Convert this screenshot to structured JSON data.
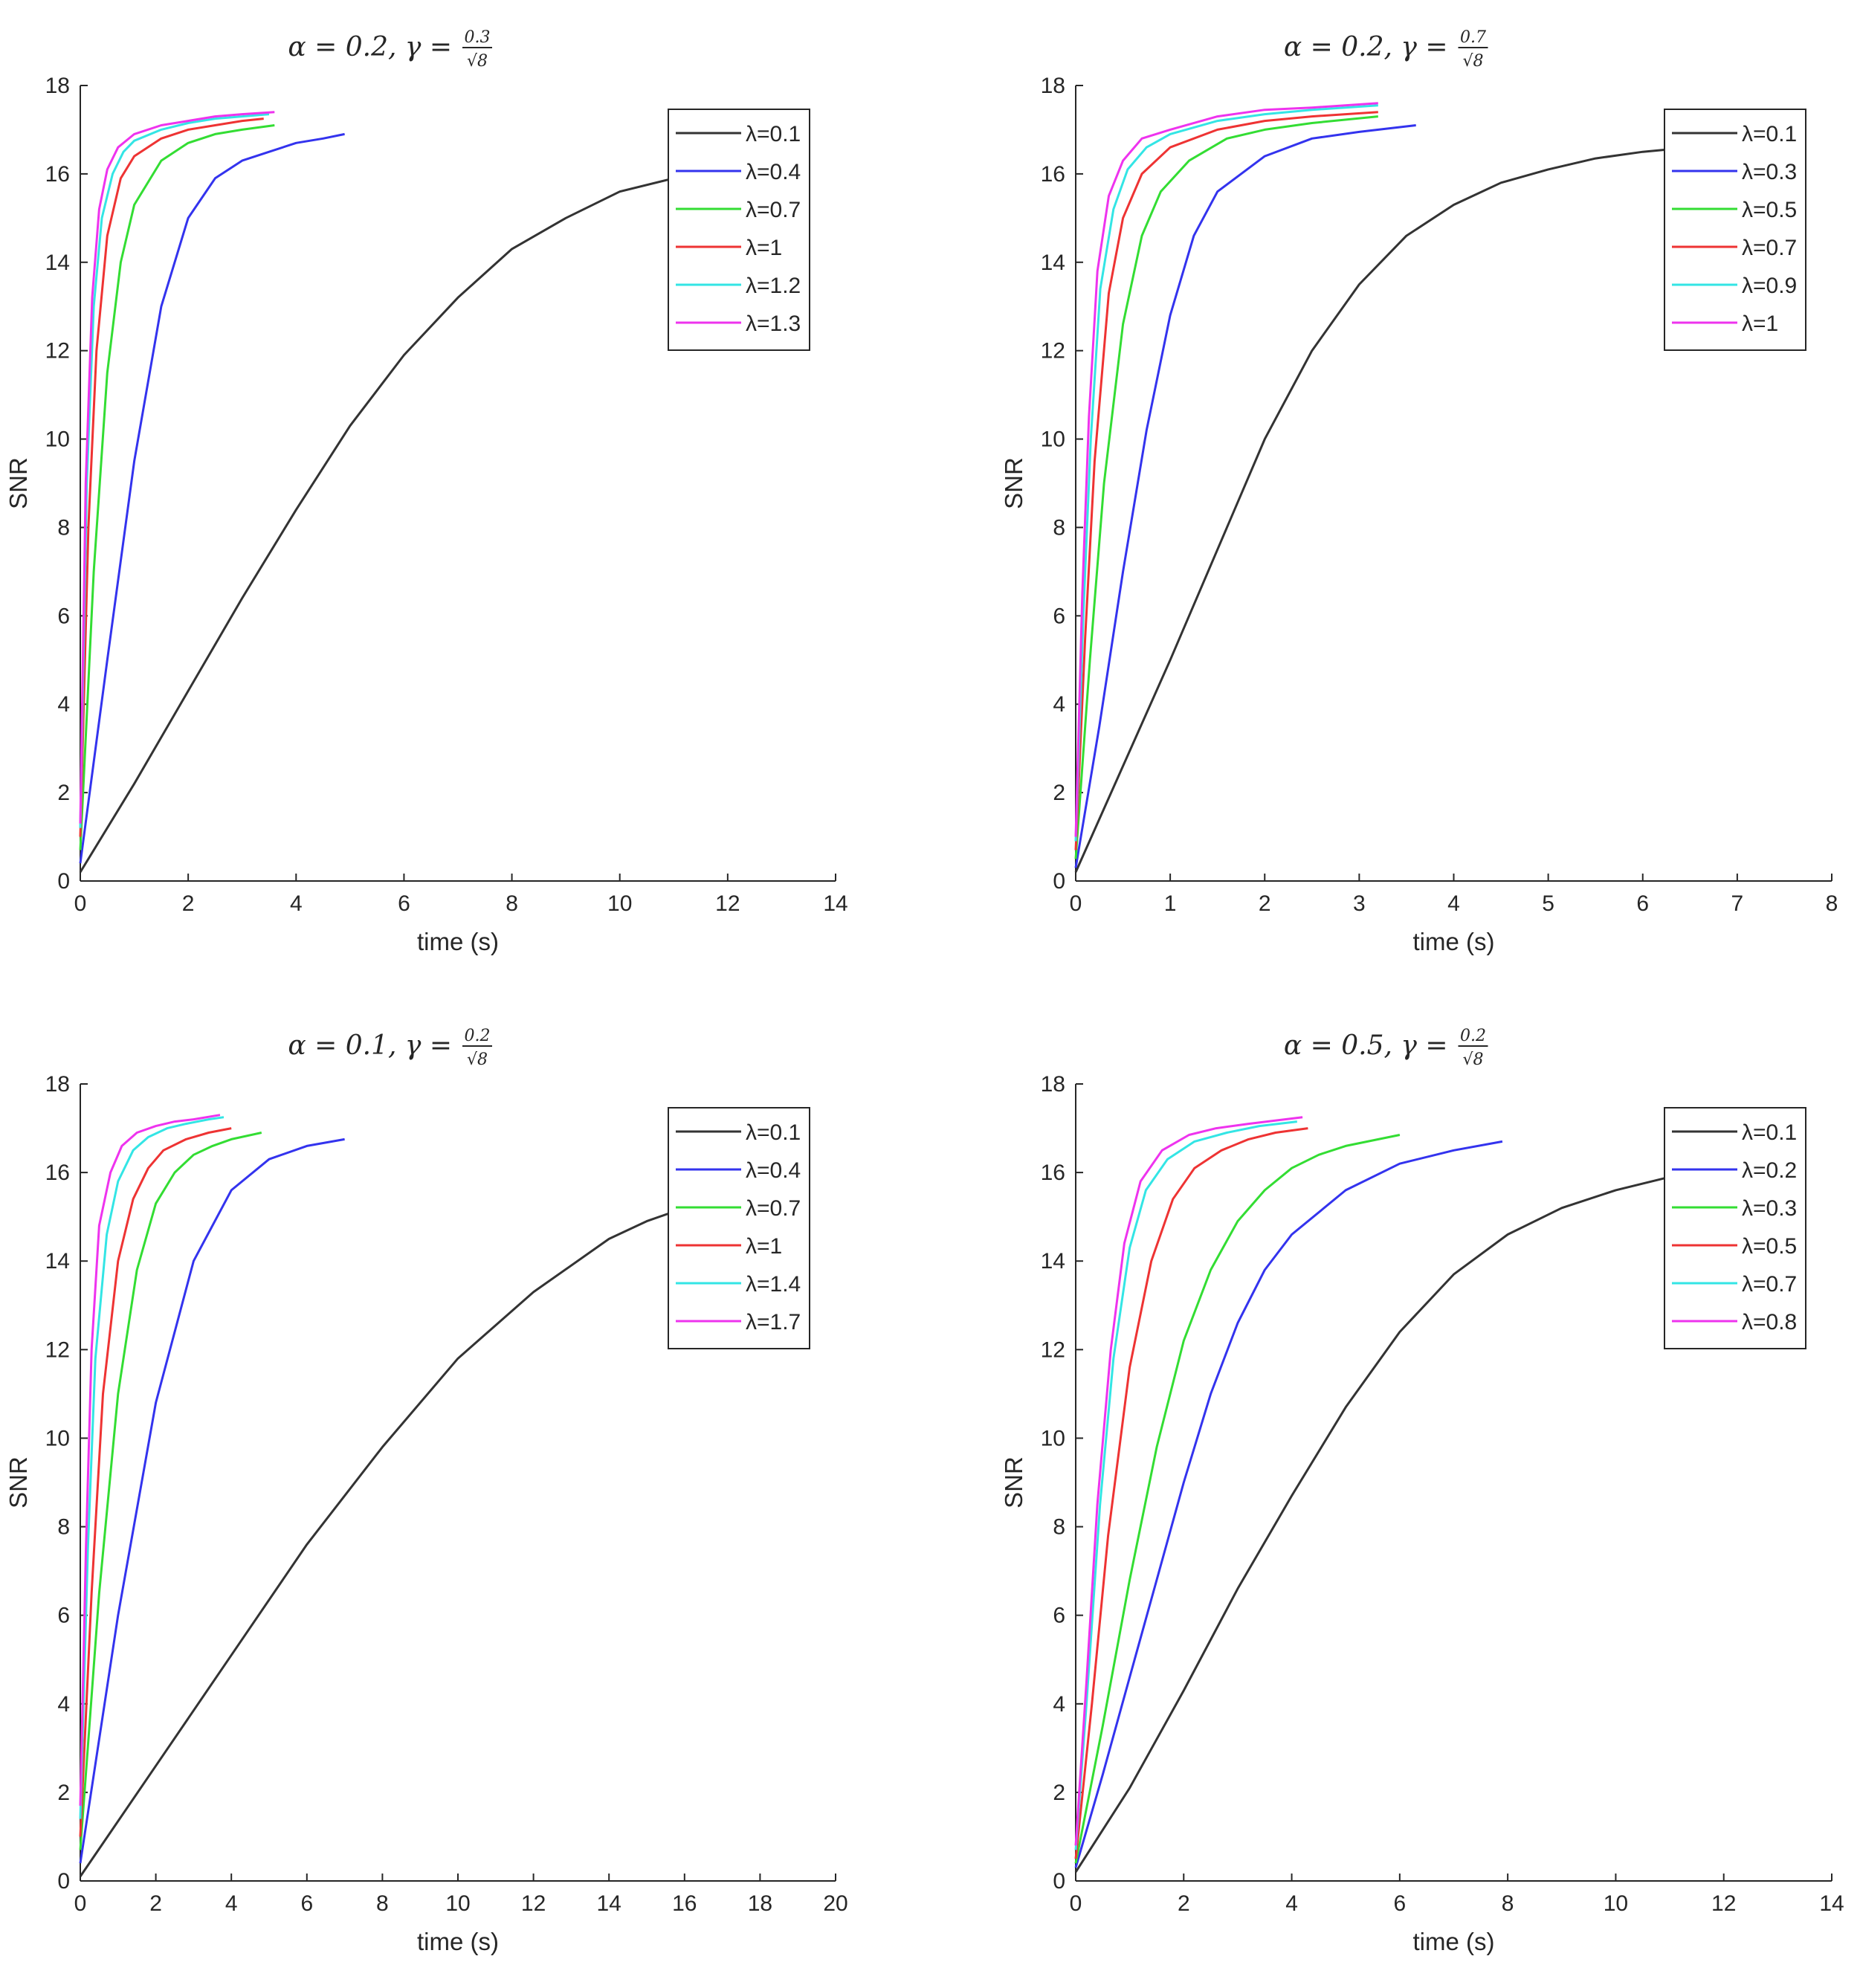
{
  "chart_data": [
    {
      "type": "line",
      "title": "α = 0.2, γ = 0.3/√8",
      "title_parts": {
        "alpha": "0.2",
        "gamma_num": "0.3",
        "gamma_den": "8"
      },
      "xlabel": "time (s)",
      "ylabel": "SNR",
      "xlim": [
        0,
        14
      ],
      "ylim": [
        0,
        18
      ],
      "xticks": [
        0,
        2,
        4,
        6,
        8,
        10,
        12,
        14
      ],
      "yticks": [
        0,
        2,
        4,
        6,
        8,
        10,
        12,
        14,
        16,
        18
      ],
      "legend_position": "top-right",
      "series": [
        {
          "name": "λ=0.1",
          "color": "#333333",
          "x": [
            0,
            1,
            2,
            3,
            4,
            5,
            6,
            7,
            8,
            9,
            10,
            11,
            12
          ],
          "y": [
            0.2,
            2.2,
            4.3,
            6.4,
            8.4,
            10.3,
            11.9,
            13.2,
            14.3,
            15.0,
            15.6,
            15.9,
            16.1
          ]
        },
        {
          "name": "λ=0.4",
          "color": "#3333ee",
          "x": [
            0,
            0.5,
            1,
            1.5,
            2,
            2.5,
            3,
            3.5,
            4,
            4.5,
            4.9
          ],
          "y": [
            0.4,
            5.0,
            9.5,
            13.0,
            15.0,
            15.9,
            16.3,
            16.5,
            16.7,
            16.8,
            16.9
          ]
        },
        {
          "name": "λ=0.7",
          "color": "#33dd33",
          "x": [
            0,
            0.25,
            0.5,
            0.75,
            1,
            1.5,
            2,
            2.5,
            3,
            3.6
          ],
          "y": [
            0.7,
            7.0,
            11.5,
            14.0,
            15.3,
            16.3,
            16.7,
            16.9,
            17.0,
            17.1
          ]
        },
        {
          "name": "λ=1",
          "color": "#ee3333",
          "x": [
            0,
            0.15,
            0.3,
            0.5,
            0.75,
            1,
            1.5,
            2,
            2.5,
            3,
            3.4
          ],
          "y": [
            1.0,
            8.0,
            12.0,
            14.6,
            15.9,
            16.4,
            16.8,
            17.0,
            17.1,
            17.2,
            17.25
          ]
        },
        {
          "name": "λ=1.2",
          "color": "#33e5e5",
          "x": [
            0,
            0.12,
            0.25,
            0.4,
            0.6,
            0.8,
            1,
            1.5,
            2,
            2.5,
            3,
            3.5
          ],
          "y": [
            1.2,
            9.0,
            13.0,
            15.0,
            16.0,
            16.5,
            16.75,
            17.0,
            17.15,
            17.25,
            17.3,
            17.35
          ]
        },
        {
          "name": "λ=1.3",
          "color": "#ee33ee",
          "x": [
            0,
            0.1,
            0.22,
            0.35,
            0.5,
            0.7,
            1,
            1.5,
            2,
            2.5,
            3,
            3.6
          ],
          "y": [
            1.3,
            9.0,
            13.2,
            15.2,
            16.1,
            16.6,
            16.9,
            17.1,
            17.2,
            17.3,
            17.35,
            17.4
          ]
        }
      ]
    },
    {
      "type": "line",
      "title": "α = 0.2, γ = 0.7/√8",
      "title_parts": {
        "alpha": "0.2",
        "gamma_num": "0.7",
        "gamma_den": "8"
      },
      "xlabel": "time (s)",
      "ylabel": "SNR",
      "xlim": [
        0,
        8
      ],
      "ylim": [
        0,
        18
      ],
      "xticks": [
        0,
        1,
        2,
        3,
        4,
        5,
        6,
        7,
        8
      ],
      "yticks": [
        0,
        2,
        4,
        6,
        8,
        10,
        12,
        14,
        16,
        18
      ],
      "legend_position": "top-right",
      "series": [
        {
          "name": "λ=0.1",
          "color": "#333333",
          "x": [
            0,
            0.5,
            1,
            1.5,
            2,
            2.5,
            3,
            3.5,
            4,
            4.5,
            5,
            5.5,
            6,
            6.5,
            6.8
          ],
          "y": [
            0.2,
            2.6,
            5.0,
            7.5,
            10.0,
            12.0,
            13.5,
            14.6,
            15.3,
            15.8,
            16.1,
            16.35,
            16.5,
            16.6,
            16.65
          ]
        },
        {
          "name": "λ=0.3",
          "color": "#3333ee",
          "x": [
            0,
            0.25,
            0.5,
            0.75,
            1,
            1.25,
            1.5,
            2,
            2.5,
            3,
            3.6
          ],
          "y": [
            0.3,
            3.5,
            7.0,
            10.2,
            12.8,
            14.6,
            15.6,
            16.4,
            16.8,
            16.95,
            17.1
          ]
        },
        {
          "name": "λ=0.5",
          "color": "#33dd33",
          "x": [
            0,
            0.15,
            0.3,
            0.5,
            0.7,
            0.9,
            1.2,
            1.6,
            2,
            2.5,
            3.2
          ],
          "y": [
            0.5,
            5.0,
            9.0,
            12.6,
            14.6,
            15.6,
            16.3,
            16.8,
            17.0,
            17.15,
            17.3
          ]
        },
        {
          "name": "λ=0.7",
          "color": "#ee3333",
          "x": [
            0,
            0.1,
            0.2,
            0.35,
            0.5,
            0.7,
            1,
            1.5,
            2,
            2.5,
            3.2
          ],
          "y": [
            0.7,
            5.5,
            9.5,
            13.3,
            15.0,
            16.0,
            16.6,
            17.0,
            17.2,
            17.3,
            17.4
          ]
        },
        {
          "name": "λ=0.9",
          "color": "#33e5e5",
          "x": [
            0,
            0.08,
            0.16,
            0.26,
            0.4,
            0.55,
            0.75,
            1,
            1.5,
            2,
            2.5,
            3.2
          ],
          "y": [
            0.9,
            6.0,
            10.0,
            13.4,
            15.2,
            16.1,
            16.6,
            16.9,
            17.2,
            17.35,
            17.45,
            17.55
          ]
        },
        {
          "name": "λ=1",
          "color": "#ee33ee",
          "x": [
            0,
            0.07,
            0.14,
            0.23,
            0.35,
            0.5,
            0.7,
            1,
            1.5,
            2,
            2.5,
            3.2
          ],
          "y": [
            1.0,
            6.5,
            10.5,
            13.8,
            15.5,
            16.3,
            16.8,
            17.0,
            17.3,
            17.45,
            17.5,
            17.6
          ]
        }
      ]
    },
    {
      "type": "line",
      "title": "α = 0.1, γ = 0.2/√8",
      "title_parts": {
        "alpha": "0.1",
        "gamma_num": "0.2",
        "gamma_den": "8"
      },
      "xlabel": "time (s)",
      "ylabel": "SNR",
      "xlim": [
        0,
        20
      ],
      "ylim": [
        0,
        18
      ],
      "xticks": [
        0,
        2,
        4,
        6,
        8,
        10,
        12,
        14,
        16,
        18,
        20
      ],
      "yticks": [
        0,
        2,
        4,
        6,
        8,
        10,
        12,
        14,
        16,
        18
      ],
      "legend_position": "top-right",
      "series": [
        {
          "name": "λ=0.1",
          "color": "#333333",
          "x": [
            0,
            2,
            4,
            6,
            8,
            10,
            12,
            14,
            15,
            16,
            16.5
          ],
          "y": [
            0.1,
            2.6,
            5.1,
            7.6,
            9.8,
            11.8,
            13.3,
            14.5,
            14.9,
            15.2,
            15.35
          ]
        },
        {
          "name": "λ=0.4",
          "color": "#3333ee",
          "x": [
            0,
            1,
            2,
            3,
            4,
            5,
            6,
            7
          ],
          "y": [
            0.4,
            6.0,
            10.8,
            14.0,
            15.6,
            16.3,
            16.6,
            16.75
          ]
        },
        {
          "name": "λ=0.7",
          "color": "#33dd33",
          "x": [
            0,
            0.5,
            1,
            1.5,
            2,
            2.5,
            3,
            3.5,
            4,
            4.8
          ],
          "y": [
            0.7,
            6.5,
            11.0,
            13.8,
            15.3,
            16.0,
            16.4,
            16.6,
            16.75,
            16.9
          ]
        },
        {
          "name": "λ=1",
          "color": "#ee3333",
          "x": [
            0,
            0.3,
            0.6,
            1,
            1.4,
            1.8,
            2.2,
            2.8,
            3.4,
            4
          ],
          "y": [
            1.0,
            6.5,
            11.0,
            14.0,
            15.4,
            16.1,
            16.5,
            16.75,
            16.9,
            17.0
          ]
        },
        {
          "name": "λ=1.4",
          "color": "#33e5e5",
          "x": [
            0,
            0.2,
            0.4,
            0.7,
            1,
            1.4,
            1.8,
            2.3,
            2.8,
            3.4,
            3.8
          ],
          "y": [
            1.4,
            7.5,
            11.8,
            14.6,
            15.8,
            16.5,
            16.8,
            17.0,
            17.1,
            17.2,
            17.25
          ]
        },
        {
          "name": "λ=1.7",
          "color": "#ee33ee",
          "x": [
            0,
            0.15,
            0.3,
            0.5,
            0.8,
            1.1,
            1.5,
            2,
            2.5,
            3,
            3.7
          ],
          "y": [
            1.7,
            7.5,
            12.0,
            14.8,
            16.0,
            16.6,
            16.9,
            17.05,
            17.15,
            17.2,
            17.3
          ]
        }
      ]
    },
    {
      "type": "line",
      "title": "α = 0.5, γ = 0.2/√8",
      "title_parts": {
        "alpha": "0.5",
        "gamma_num": "0.2",
        "gamma_den": "8"
      },
      "xlabel": "time (s)",
      "ylabel": "SNR",
      "xlim": [
        0,
        14
      ],
      "ylim": [
        0,
        18
      ],
      "xticks": [
        0,
        2,
        4,
        6,
        8,
        10,
        12,
        14
      ],
      "yticks": [
        0,
        2,
        4,
        6,
        8,
        10,
        12,
        14,
        16,
        18
      ],
      "legend_position": "top-right",
      "series": [
        {
          "name": "λ=0.1",
          "color": "#333333",
          "x": [
            0,
            1,
            2,
            3,
            4,
            5,
            6,
            7,
            8,
            9,
            10,
            11,
            11.6
          ],
          "y": [
            0.2,
            2.1,
            4.3,
            6.6,
            8.7,
            10.7,
            12.4,
            13.7,
            14.6,
            15.2,
            15.6,
            15.9,
            16.0
          ]
        },
        {
          "name": "λ=0.2",
          "color": "#3333ee",
          "x": [
            0,
            0.5,
            1,
            1.5,
            2,
            2.5,
            3,
            3.5,
            4,
            5,
            6,
            7,
            7.9
          ],
          "y": [
            0.3,
            2.4,
            4.6,
            6.8,
            9.0,
            11.0,
            12.6,
            13.8,
            14.6,
            15.6,
            16.2,
            16.5,
            16.7
          ]
        },
        {
          "name": "λ=0.3",
          "color": "#33dd33",
          "x": [
            0,
            0.5,
            1,
            1.5,
            2,
            2.5,
            3,
            3.5,
            4,
            4.5,
            5,
            6
          ],
          "y": [
            0.4,
            3.5,
            6.8,
            9.8,
            12.2,
            13.8,
            14.9,
            15.6,
            16.1,
            16.4,
            16.6,
            16.85
          ]
        },
        {
          "name": "λ=0.5",
          "color": "#ee3333",
          "x": [
            0,
            0.3,
            0.6,
            1,
            1.4,
            1.8,
            2.2,
            2.7,
            3.2,
            3.7,
            4.3
          ],
          "y": [
            0.5,
            4.0,
            7.8,
            11.6,
            14.0,
            15.4,
            16.1,
            16.5,
            16.75,
            16.9,
            17.0
          ]
        },
        {
          "name": "λ=0.7",
          "color": "#33e5e5",
          "x": [
            0,
            0.2,
            0.45,
            0.7,
            1,
            1.3,
            1.7,
            2.2,
            2.8,
            3.4,
            4.1
          ],
          "y": [
            0.7,
            4.0,
            8.5,
            11.8,
            14.3,
            15.6,
            16.3,
            16.7,
            16.9,
            17.05,
            17.15
          ]
        },
        {
          "name": "λ=0.8",
          "color": "#ee33ee",
          "x": [
            0,
            0.2,
            0.4,
            0.65,
            0.9,
            1.2,
            1.6,
            2.1,
            2.6,
            3.2,
            4.2
          ],
          "y": [
            0.8,
            4.5,
            8.5,
            12.0,
            14.4,
            15.8,
            16.5,
            16.85,
            17.0,
            17.1,
            17.25
          ]
        }
      ]
    }
  ]
}
